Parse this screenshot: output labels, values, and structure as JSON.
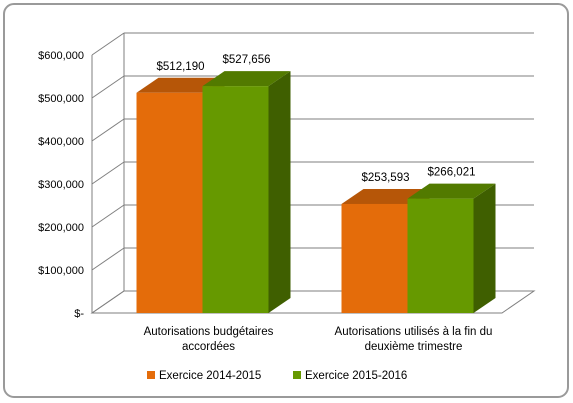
{
  "chart_data": {
    "type": "bar",
    "categories": [
      [
        "Autorisations budgétaires",
        "accordées"
      ],
      [
        "Autorisations utilisés à la fin du",
        "deuxième trimestre"
      ]
    ],
    "series": [
      {
        "name": "Exercice 2014-2015",
        "values": [
          512190,
          253593
        ],
        "value_labels": [
          "$512,190",
          "$253,593"
        ],
        "color": "#E46C0A"
      },
      {
        "name": "Exercice 2015-2016",
        "values": [
          527656,
          266021
        ],
        "value_labels": [
          "$527,656",
          "$266,021"
        ],
        "color": "#669900"
      }
    ],
    "ylim": [
      0,
      600000
    ],
    "y_ticks": [
      0,
      100000,
      200000,
      300000,
      400000,
      500000,
      600000
    ],
    "y_tick_labels": [
      "$-",
      "$100,000",
      "$200,000",
      "$300,000",
      "$400,000",
      "$500,000",
      "$600,000"
    ],
    "grid": true,
    "legend_position": "bottom",
    "three_d": true
  }
}
